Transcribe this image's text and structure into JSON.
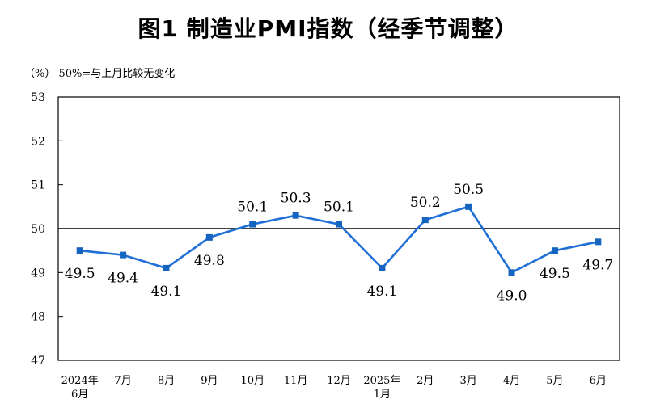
{
  "title": "图1  制造业PMI指数（经季节调整）",
  "unit_note": "（%）  50%=与上月比较无变化",
  "colors": {
    "line": "#1f6fd6",
    "marker": "#1565c0",
    "reference": "#000000",
    "frame": "#000000"
  },
  "chart_data": {
    "type": "line",
    "categories": [
      [
        "2024年",
        "6月"
      ],
      [
        "7月"
      ],
      [
        "8月"
      ],
      [
        "9月"
      ],
      [
        "10月"
      ],
      [
        "11月"
      ],
      [
        "12月"
      ],
      [
        "2025年",
        "1月"
      ],
      [
        "2月"
      ],
      [
        "3月"
      ],
      [
        "4月"
      ],
      [
        "5月"
      ],
      [
        "6月"
      ]
    ],
    "values": [
      49.5,
      49.4,
      49.1,
      49.8,
      50.1,
      50.3,
      50.1,
      49.1,
      50.2,
      50.5,
      49.0,
      49.5,
      49.7
    ],
    "data_labels": [
      "49.5",
      "49.4",
      "49.1",
      "49.8",
      "50.1",
      "50.3",
      "50.1",
      "49.1",
      "50.2",
      "50.5",
      "49.0",
      "49.5",
      "49.7"
    ],
    "label_position": [
      "below",
      "below",
      "below",
      "below",
      "above",
      "above",
      "above",
      "below",
      "above",
      "above",
      "below",
      "below",
      "below"
    ],
    "yticks": [
      47,
      48,
      49,
      50,
      51,
      52,
      53
    ],
    "ylim": [
      47,
      53
    ],
    "reference_line": 50,
    "grid": false,
    "legend": "none"
  }
}
